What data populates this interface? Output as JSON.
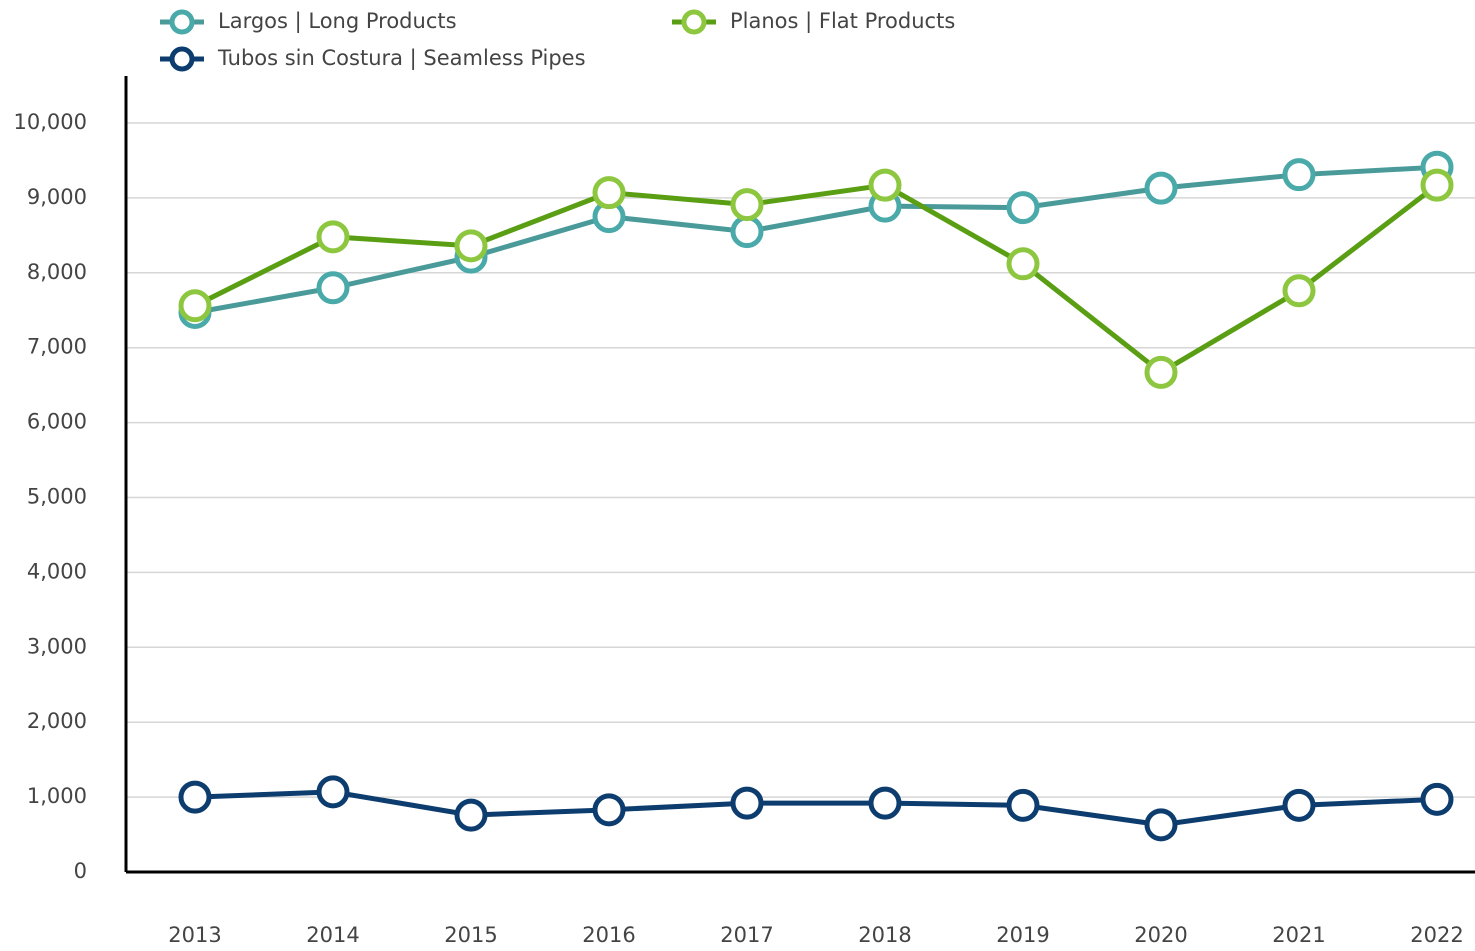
{
  "chart_data": {
    "type": "line",
    "x": [
      "2013",
      "2014",
      "2015",
      "2016",
      "2017",
      "2018",
      "2019",
      "2020",
      "2021",
      "2022"
    ],
    "series": [
      {
        "name": "Largos | Long Products",
        "color": "#4a9a9a",
        "marker_color": "#4aa9a9",
        "values": [
          7470,
          7800,
          8210,
          8750,
          8550,
          8890,
          8870,
          9130,
          9310,
          9410
        ]
      },
      {
        "name": "Planos | Flat Products",
        "color": "#5a9e14",
        "marker_color": "#8dc63f",
        "values": [
          7560,
          8480,
          8360,
          9070,
          8910,
          9170,
          8120,
          6670,
          7760,
          9170
        ]
      },
      {
        "name": "Tubos sin Costura | Seamless Pipes",
        "color": "#0d3c6e",
        "marker_color": "#0d3c6e",
        "values": [
          1000,
          1070,
          760,
          830,
          920,
          920,
          890,
          630,
          890,
          970
        ]
      }
    ],
    "ylim": [
      0,
      10000
    ],
    "yticks": [
      0,
      {
        "value": 1000,
        "label": "1,000"
      },
      {
        "value": 2000,
        "label": "2,000"
      },
      {
        "value": 3000,
        "label": "3,000"
      },
      {
        "value": 4000,
        "label": "4,000"
      },
      {
        "value": 5000,
        "label": "5,000"
      },
      {
        "value": 6000,
        "label": "6,000"
      },
      {
        "value": 7000,
        "label": "7,000"
      },
      {
        "value": 8000,
        "label": "8,000"
      },
      {
        "value": 9000,
        "label": "9,000"
      },
      {
        "value": 10000,
        "label": "10,000"
      }
    ],
    "grid": true
  }
}
